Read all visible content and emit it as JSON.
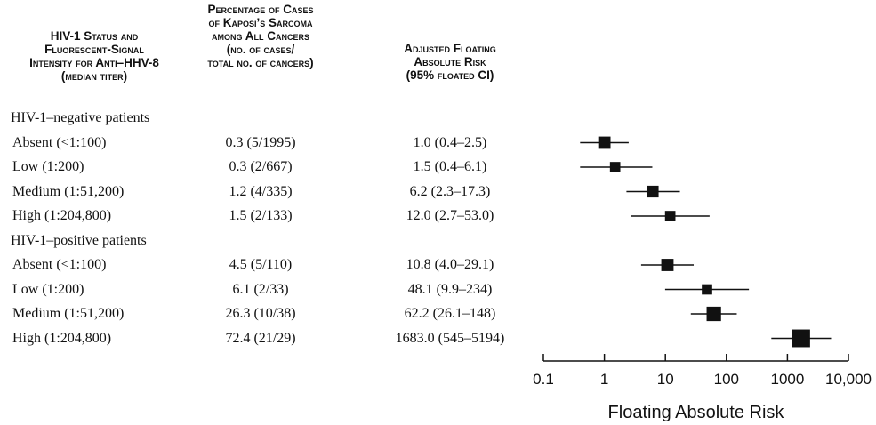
{
  "headers": {
    "col1": [
      "HIV-1 Status and",
      "Fluorescent-Signal",
      "Intensity for Anti–HHV-8",
      "(median titer)"
    ],
    "col2": [
      "Percentage of Cases",
      "of Kaposi’s Sarcoma",
      "among All Cancers",
      "(no. of cases/",
      "total no. of cancers)"
    ],
    "col3": [
      "Adjusted Floating",
      "Absolute Risk",
      "(95% floated CI)"
    ]
  },
  "rows": [
    {
      "type": "group",
      "label": "HIV-1–negative patients"
    },
    {
      "type": "data",
      "label": "Absent (<1:100)",
      "pct": "0.3 (5/1995)",
      "risk": "1.0 (0.4–2.5)"
    },
    {
      "type": "data",
      "label": "Low (1:200)",
      "pct": "0.3 (2/667)",
      "risk": "1.5 (0.4–6.1)"
    },
    {
      "type": "data",
      "label": "Medium (1:51,200)",
      "pct": "1.2 (4/335)",
      "risk": "6.2 (2.3–17.3)"
    },
    {
      "type": "data",
      "label": "High (1:204,800)",
      "pct": "1.5 (2/133)",
      "risk": "12.0 (2.7–53.0)"
    },
    {
      "type": "group",
      "label": "HIV-1–positive patients"
    },
    {
      "type": "data",
      "label": "Absent (<1:100)",
      "pct": "4.5 (5/110)",
      "risk": "10.8 (4.0–29.1)"
    },
    {
      "type": "data",
      "label": "Low (1:200)",
      "pct": "6.1 (2/33)",
      "risk": "48.1 (9.9–234)"
    },
    {
      "type": "data",
      "label": "Medium (1:51,200)",
      "pct": "26.3 (10/38)",
      "risk": "62.2 (26.1–148)"
    },
    {
      "type": "data",
      "label": "High (1:204,800)",
      "pct": "72.4 (21/29)",
      "risk": "1683.0 (545–5194)"
    }
  ],
  "chart_data": {
    "type": "scatter",
    "scale": "log",
    "xlim": [
      0.1,
      10000
    ],
    "xlabel": "Floating Absolute Risk",
    "ticks": [
      {
        "value": 0.1,
        "label": "0.1"
      },
      {
        "value": 1,
        "label": "1"
      },
      {
        "value": 10,
        "label": "10"
      },
      {
        "value": 100,
        "label": "100"
      },
      {
        "value": 1000,
        "label": "1000"
      },
      {
        "value": 10000,
        "label": "10,000"
      }
    ],
    "points": [
      {
        "row": 1,
        "estimate": 1.0,
        "lower": 0.4,
        "upper": 2.5,
        "cases": 5
      },
      {
        "row": 2,
        "estimate": 1.5,
        "lower": 0.4,
        "upper": 6.1,
        "cases": 2
      },
      {
        "row": 3,
        "estimate": 6.2,
        "lower": 2.3,
        "upper": 17.3,
        "cases": 4
      },
      {
        "row": 4,
        "estimate": 12.0,
        "lower": 2.7,
        "upper": 53.0,
        "cases": 2
      },
      {
        "row": 6,
        "estimate": 10.8,
        "lower": 4.0,
        "upper": 29.1,
        "cases": 5
      },
      {
        "row": 7,
        "estimate": 48.1,
        "lower": 9.9,
        "upper": 234,
        "cases": 2
      },
      {
        "row": 8,
        "estimate": 62.2,
        "lower": 26.1,
        "upper": 148,
        "cases": 10
      },
      {
        "row": 9,
        "estimate": 1683.0,
        "lower": 545,
        "upper": 5194,
        "cases": 21
      }
    ]
  }
}
